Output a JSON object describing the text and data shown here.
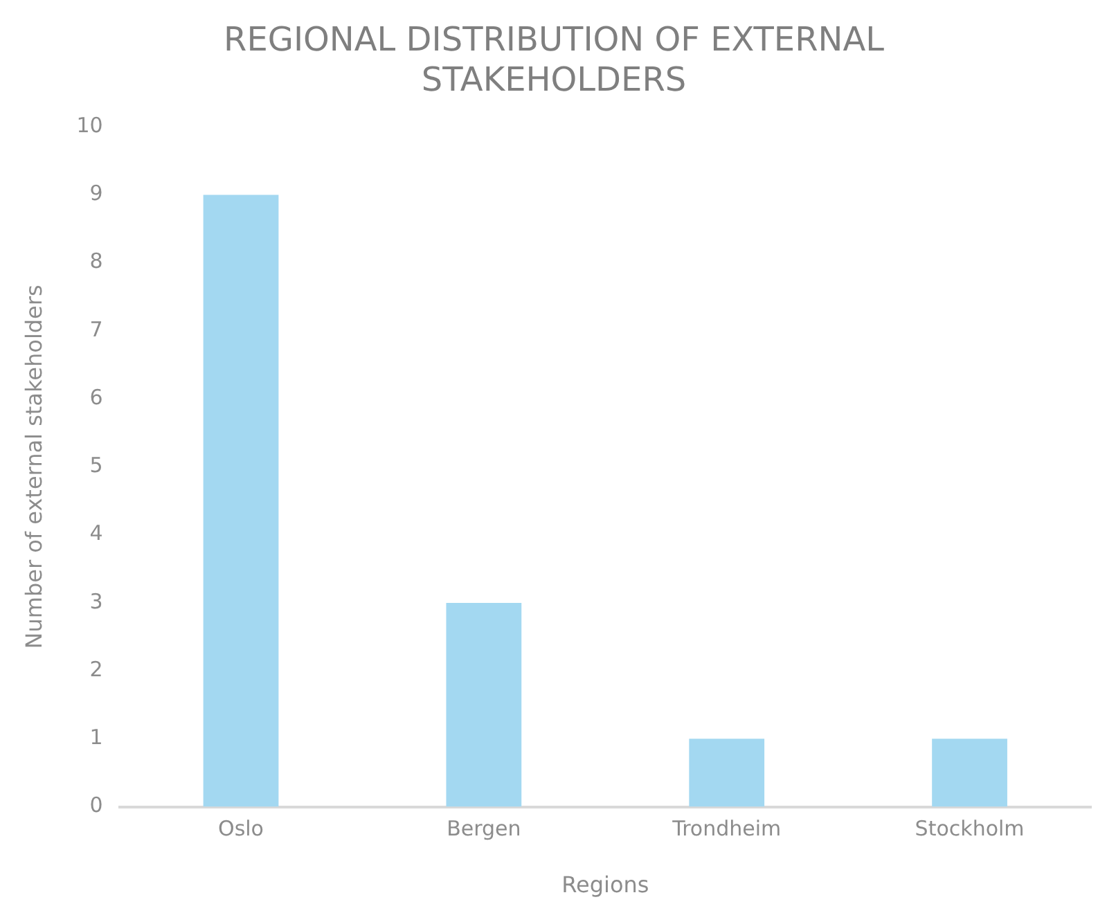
{
  "chart_data": {
    "type": "bar",
    "title": "REGIONAL DISTRIBUTION OF EXTERNAL STAKEHOLDERS",
    "xlabel": "Regions",
    "ylabel": "Number of external stakeholders",
    "categories": [
      "Oslo",
      "Bergen",
      "Trondheim",
      "Stockholm"
    ],
    "values": [
      9,
      3,
      1,
      1
    ],
    "color": "#a3d8f1",
    "ylim": [
      0,
      10
    ],
    "yticks": [
      0,
      1,
      2,
      3,
      4,
      5,
      6,
      7,
      8,
      9,
      10
    ],
    "grid": false,
    "legend": false
  }
}
